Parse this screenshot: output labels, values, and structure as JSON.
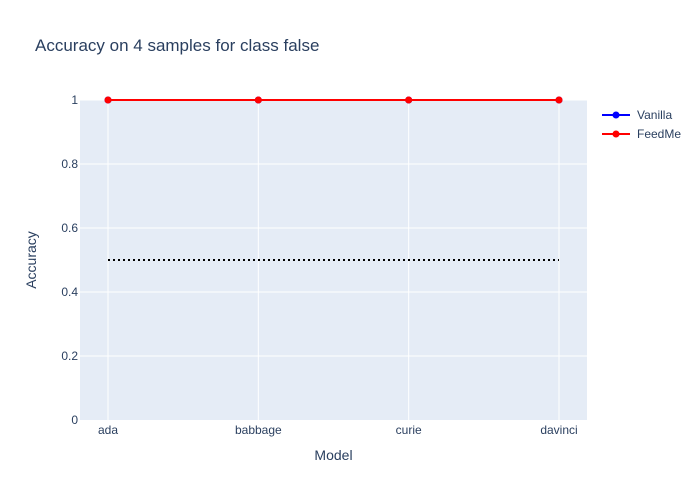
{
  "chart_data": {
    "type": "line",
    "title": "Accuracy on 4 samples for class  false",
    "xlabel": "Model",
    "ylabel": "Accuracy",
    "categories": [
      "ada",
      "babbage",
      "curie",
      "davinci"
    ],
    "ylim": [
      0,
      1
    ],
    "yticks": [
      0,
      0.2,
      0.4,
      0.6,
      0.8,
      1
    ],
    "ytick_labels": [
      "0",
      "0.2",
      "0.4",
      "0.6",
      "0.8",
      "1"
    ],
    "grid": true,
    "legend_position": "top-right",
    "series": [
      {
        "name": "Vanilla",
        "values": [
          1,
          1,
          1,
          1
        ],
        "color": "#0000ff"
      },
      {
        "name": "FeedMe",
        "values": [
          1,
          1,
          1,
          1
        ],
        "color": "#ff0000"
      }
    ],
    "reference_line": {
      "value": 0.5,
      "style": "dotted",
      "color": "#000000"
    },
    "plot_background": "#e5ecf6"
  }
}
